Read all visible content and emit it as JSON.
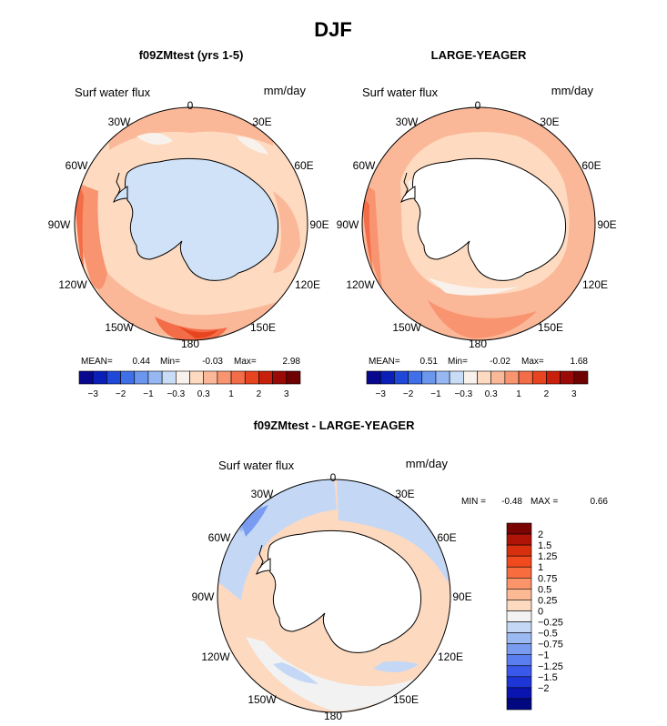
{
  "figure_title": "DJF",
  "chart_data": [
    {
      "type": "heatmap",
      "title": "f09ZMtest (yrs 1-5)",
      "variable_label": "Surf water flux",
      "units": "mm/day",
      "projection": "south-polar-stereographic",
      "longitude_labels": [
        "0",
        "30E",
        "60E",
        "90E",
        "120E",
        "150E",
        "180",
        "150W",
        "120W",
        "90W",
        "60W",
        "30W"
      ],
      "stats": {
        "mean_label": "MEAN=",
        "mean": "0.44",
        "min_label": "Min=",
        "min": "-0.03",
        "max_label": "Max=",
        "max": "2.98"
      },
      "colorbar": {
        "orientation": "horizontal",
        "colors": [
          "#08088f",
          "#0a1fb8",
          "#1f48d8",
          "#4070e8",
          "#6a96ee",
          "#95b8f2",
          "#c8dcf6",
          "#f9f2ec",
          "#fddac0",
          "#fbb898",
          "#f89470",
          "#f26d48",
          "#e84420",
          "#c8200c",
          "#9a0a06",
          "#6e0202"
        ],
        "tick_labels": [
          "−3",
          "−2",
          "−1",
          "−0.3",
          "0.3",
          "1",
          "2",
          "3"
        ]
      }
    },
    {
      "type": "heatmap",
      "title": "LARGE-YEAGER",
      "variable_label": "Surf water flux",
      "units": "mm/day",
      "projection": "south-polar-stereographic",
      "longitude_labels": [
        "0",
        "30E",
        "60E",
        "90E",
        "120E",
        "150E",
        "180",
        "150W",
        "120W",
        "90W",
        "60W",
        "30W"
      ],
      "stats": {
        "mean_label": "MEAN=",
        "mean": "0.51",
        "min_label": "Min=",
        "min": "-0.02",
        "max_label": "Max=",
        "max": "1.68"
      },
      "colorbar": {
        "orientation": "horizontal",
        "colors": [
          "#08088f",
          "#0a1fb8",
          "#1f48d8",
          "#4070e8",
          "#6a96ee",
          "#95b8f2",
          "#c8dcf6",
          "#f9f2ec",
          "#fddac0",
          "#fbb898",
          "#f89470",
          "#f26d48",
          "#e84420",
          "#c8200c",
          "#9a0a06",
          "#6e0202"
        ],
        "tick_labels": [
          "−3",
          "−2",
          "−1",
          "−0.3",
          "0.3",
          "1",
          "2",
          "3"
        ]
      }
    },
    {
      "type": "heatmap",
      "title": "f09ZMtest - LARGE-YEAGER",
      "variable_label": "Surf water flux",
      "units": "mm/day",
      "projection": "south-polar-stereographic",
      "longitude_labels": [
        "0",
        "30E",
        "60E",
        "90E",
        "120E",
        "150E",
        "180",
        "150W",
        "120W",
        "90W",
        "60W",
        "30W"
      ],
      "stats": {
        "min_label": "MIN =",
        "min": "-0.48",
        "max_label": "MAX =",
        "max": "0.66"
      },
      "colorbar": {
        "orientation": "vertical",
        "colors": [
          "#7a0404",
          "#b01408",
          "#d8300e",
          "#f04a1e",
          "#f86c3e",
          "#fb9468",
          "#fdb894",
          "#fdd9c0",
          "#f2f2f2",
          "#c4d8f6",
          "#9cbaf2",
          "#7a9cf0",
          "#5a7ef0",
          "#3a58ea",
          "#1e36d8",
          "#0a14b0",
          "#020880"
        ],
        "tick_labels": [
          "2",
          "1.5",
          "1.25",
          "1",
          "0.75",
          "0.5",
          "0.25",
          "0",
          "−0.25",
          "−0.5",
          "−0.75",
          "−1",
          "−1.25",
          "−1.5",
          "−2"
        ]
      }
    }
  ]
}
